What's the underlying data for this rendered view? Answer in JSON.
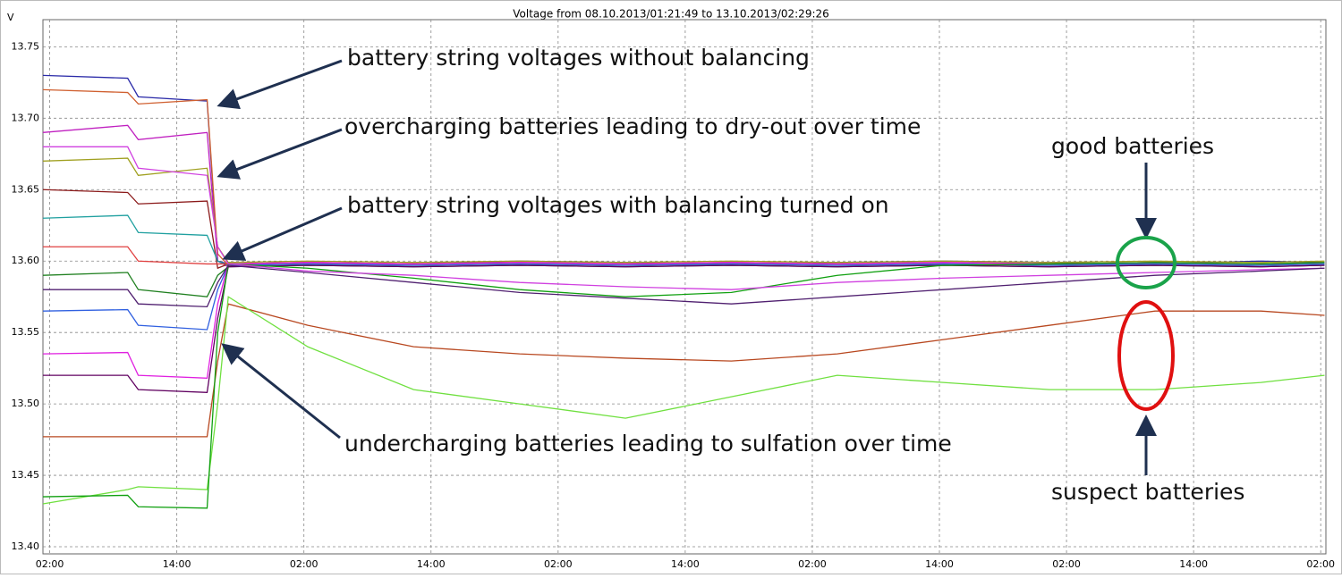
{
  "chart_data": {
    "type": "line",
    "title": "Voltage from 08.10.2013/01:21:49 to 13.10.2013/02:29:26",
    "y_label": "V",
    "annotations": [
      "battery string voltages without balancing",
      "overcharging batteries leading to dry-out over time",
      "battery string voltages with balancing turned on",
      "undercharging batteries leading to sulfation over time",
      "good batteries",
      "suspect batteries"
    ],
    "x": [
      0,
      8,
      9,
      15.5,
      16.5,
      17.5,
      25,
      35,
      45,
      55,
      65,
      75,
      85,
      95,
      105,
      115,
      121
    ],
    "xlim": [
      0,
      121.13
    ],
    "xticks": [
      {
        "value": 0.64,
        "label": "02:00"
      },
      {
        "value": 12.64,
        "label": "14:00"
      },
      {
        "value": 24.64,
        "label": "02:00"
      },
      {
        "value": 36.64,
        "label": "14:00"
      },
      {
        "value": 48.64,
        "label": "02:00"
      },
      {
        "value": 60.64,
        "label": "14:00"
      },
      {
        "value": 72.64,
        "label": "02:00"
      },
      {
        "value": 84.64,
        "label": "14:00"
      },
      {
        "value": 96.64,
        "label": "02:00"
      },
      {
        "value": 108.64,
        "label": "14:00"
      },
      {
        "value": 120.64,
        "label": "02:00"
      }
    ],
    "ylim": [
      13.395,
      13.769
    ],
    "yticks": [
      {
        "value": 13.4,
        "label": "13.40"
      },
      13.45,
      {
        "value": 13.5,
        "label": "13.50"
      },
      13.55,
      {
        "value": 13.6,
        "label": "13.60"
      },
      13.65,
      {
        "value": 13.7,
        "label": "13.70"
      },
      13.75
    ],
    "grid": true,
    "series": [
      {
        "color": "#2a2aa8",
        "values": [
          13.73,
          13.728,
          13.715,
          13.712,
          13.6,
          13.598,
          13.599,
          13.598,
          13.6,
          13.599,
          13.598,
          13.599,
          13.6,
          13.599,
          13.598,
          13.6,
          13.599
        ]
      },
      {
        "color": "#d06030",
        "values": [
          13.72,
          13.718,
          13.71,
          13.713,
          13.605,
          13.597,
          13.598,
          13.597,
          13.598,
          13.597,
          13.598,
          13.597,
          13.598,
          13.597,
          13.598,
          13.597,
          13.598
        ]
      },
      {
        "color": "#c020c0",
        "values": [
          13.69,
          13.695,
          13.685,
          13.69,
          13.6,
          13.596,
          13.597,
          13.596,
          13.597,
          13.596,
          13.597,
          13.596,
          13.597,
          13.596,
          13.597,
          13.596,
          13.597
        ]
      },
      {
        "color": "#a0a020",
        "values": [
          13.67,
          13.672,
          13.66,
          13.665,
          13.61,
          13.599,
          13.6,
          13.599,
          13.6,
          13.599,
          13.6,
          13.599,
          13.6,
          13.599,
          13.6,
          13.599,
          13.6
        ]
      },
      {
        "color": "#8b1a1a",
        "values": [
          13.65,
          13.648,
          13.64,
          13.642,
          13.595,
          13.598,
          13.599,
          13.598,
          13.599,
          13.598,
          13.599,
          13.598,
          13.599,
          13.598,
          13.599,
          13.598,
          13.599
        ]
      },
      {
        "color": "#20a0a0",
        "values": [
          13.63,
          13.632,
          13.62,
          13.618,
          13.6,
          13.597,
          13.598,
          13.597,
          13.598,
          13.597,
          13.598,
          13.597,
          13.598,
          13.597,
          13.598,
          13.597,
          13.598
        ]
      },
      {
        "color": "#e04040",
        "values": [
          13.61,
          13.61,
          13.6,
          13.598,
          13.598,
          13.598,
          13.599,
          13.598,
          13.599,
          13.598,
          13.599,
          13.598,
          13.599,
          13.598,
          13.599,
          13.598,
          13.599
        ]
      },
      {
        "color": "#208020",
        "values": [
          13.59,
          13.592,
          13.58,
          13.575,
          13.59,
          13.596,
          13.597,
          13.596,
          13.597,
          13.596,
          13.597,
          13.596,
          13.597,
          13.596,
          13.597,
          13.596,
          13.597
        ]
      },
      {
        "color": "#3060e0",
        "values": [
          13.565,
          13.566,
          13.555,
          13.552,
          13.58,
          13.597,
          13.598,
          13.597,
          13.598,
          13.597,
          13.598,
          13.597,
          13.598,
          13.597,
          13.598,
          13.597,
          13.598
        ]
      },
      {
        "color": "#e020e0",
        "values": [
          13.535,
          13.536,
          13.52,
          13.518,
          13.57,
          13.598,
          13.599,
          13.598,
          13.599,
          13.598,
          13.599,
          13.598,
          13.599,
          13.598,
          13.599,
          13.598,
          13.599
        ]
      },
      {
        "color": "#600060",
        "values": [
          13.52,
          13.52,
          13.51,
          13.508,
          13.56,
          13.596,
          13.597,
          13.596,
          13.597,
          13.596,
          13.597,
          13.596,
          13.597,
          13.596,
          13.597,
          13.596,
          13.597
        ]
      },
      {
        "color": "#b84820",
        "values": [
          13.477,
          13.477,
          13.477,
          13.477,
          13.53,
          13.57,
          13.555,
          13.54,
          13.535,
          13.532,
          13.53,
          13.535,
          13.545,
          13.555,
          13.565,
          13.565,
          13.562
        ]
      },
      {
        "color": "#70e040",
        "values": [
          13.43,
          13.44,
          13.442,
          13.44,
          13.5,
          13.575,
          13.54,
          13.51,
          13.5,
          13.49,
          13.505,
          13.52,
          13.515,
          13.51,
          13.51,
          13.515,
          13.52
        ]
      },
      {
        "color": "#10a010",
        "values": [
          13.435,
          13.436,
          13.428,
          13.427,
          13.55,
          13.598,
          13.595,
          13.588,
          13.58,
          13.575,
          13.578,
          13.59,
          13.597,
          13.598,
          13.599,
          13.598,
          13.599
        ]
      },
      {
        "color": "#d040e0",
        "values": [
          13.68,
          13.68,
          13.665,
          13.66,
          13.61,
          13.598,
          13.593,
          13.59,
          13.585,
          13.582,
          13.58,
          13.585,
          13.588,
          13.59,
          13.592,
          13.594,
          13.595
        ]
      },
      {
        "color": "#502070",
        "values": [
          13.58,
          13.58,
          13.57,
          13.568,
          13.585,
          13.597,
          13.592,
          13.585,
          13.578,
          13.574,
          13.57,
          13.575,
          13.58,
          13.585,
          13.59,
          13.593,
          13.595
        ]
      }
    ]
  }
}
